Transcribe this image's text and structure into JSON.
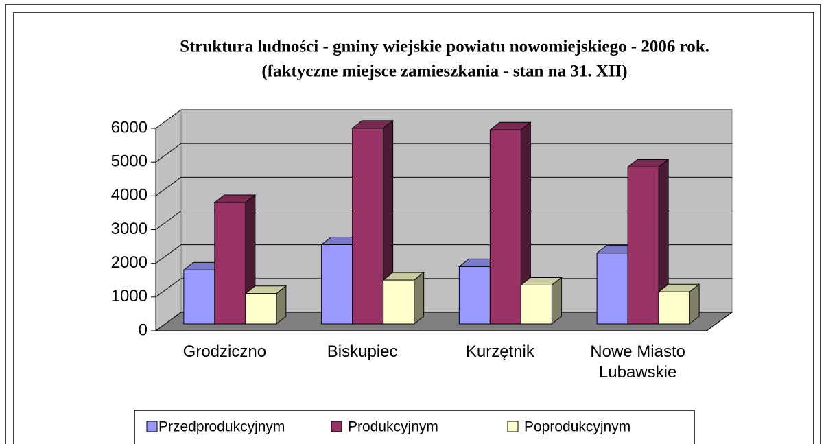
{
  "chart_data": {
    "type": "bar3d",
    "title": "Struktura ludności - gminy wiejskie powiatu nowomiejskiego - 2006 rok.",
    "subtitle": "(faktyczne miejsce zamieszkania - stan na 31. XII)",
    "categories": [
      "Grodziczno",
      "Biskupiec",
      "Kurzętnik",
      "Nowe Miasto Lubawskie"
    ],
    "series": [
      {
        "name": "Przedprodukcyjnym",
        "color": "#9999ff",
        "values": [
          1600,
          2350,
          1700,
          2100
        ]
      },
      {
        "name": "Produkcyjnym",
        "color": "#993366",
        "values": [
          3600,
          5800,
          5750,
          4650
        ]
      },
      {
        "name": "Poprodukcyjnym",
        "color": "#ffffcc",
        "values": [
          900,
          1300,
          1150,
          950
        ]
      }
    ],
    "ylim": [
      0,
      6000
    ],
    "yticks": [
      0,
      1000,
      2000,
      3000,
      4000,
      5000,
      6000
    ],
    "grid": true,
    "legend": "bottom"
  }
}
